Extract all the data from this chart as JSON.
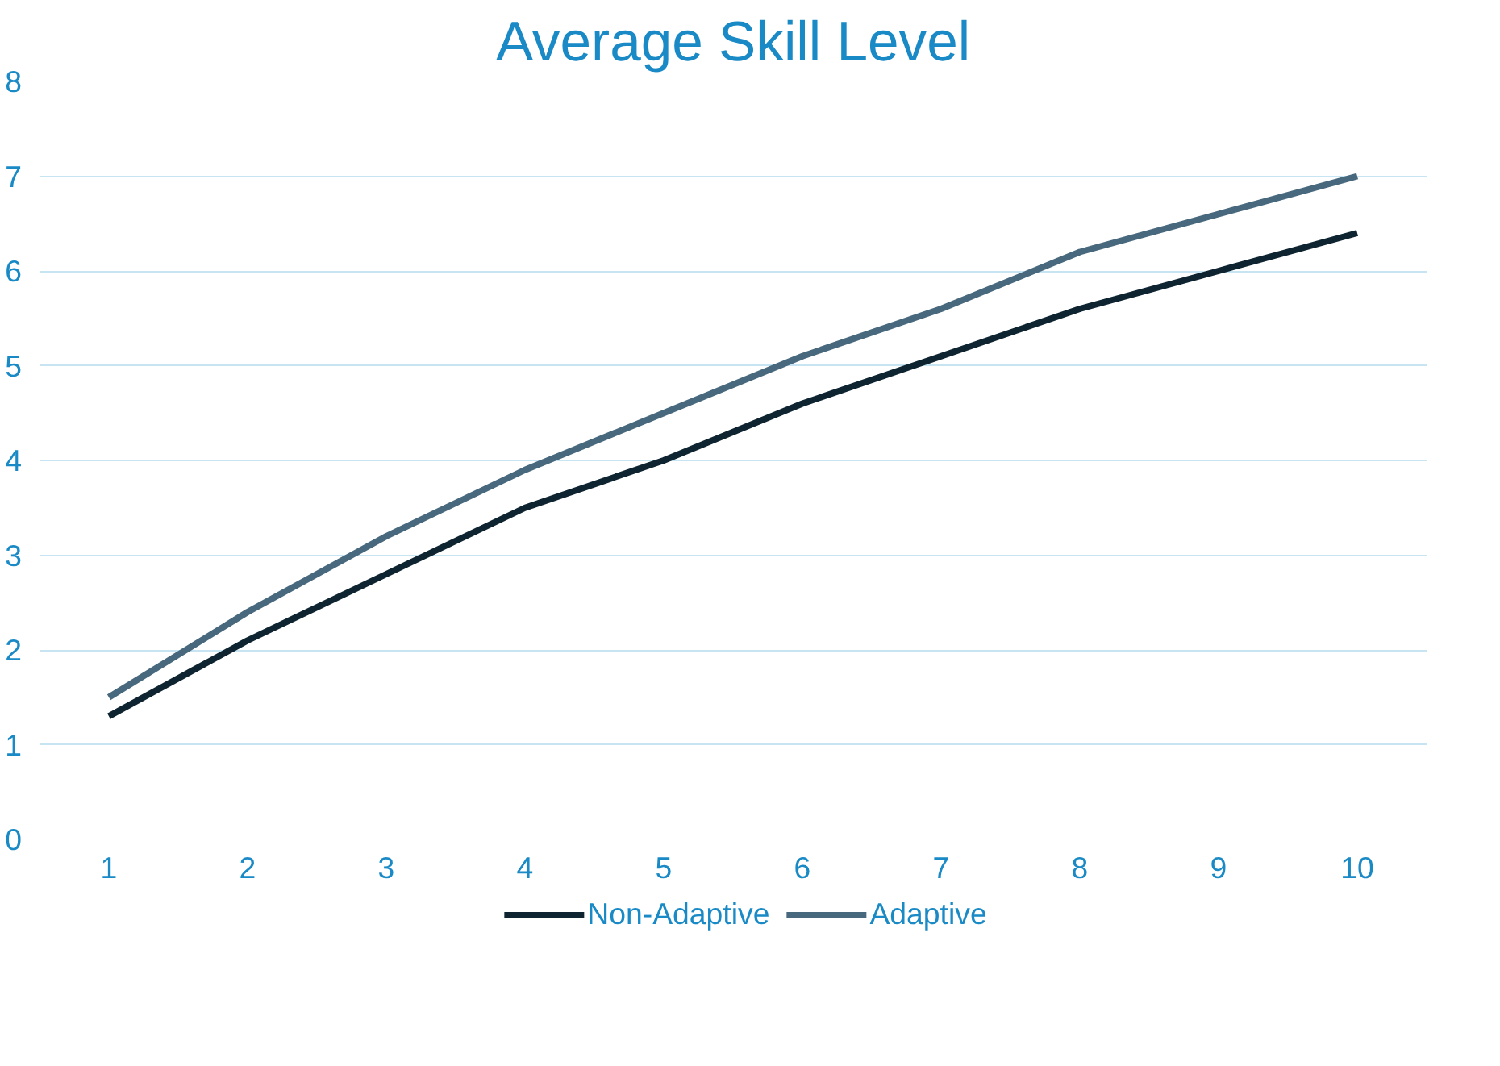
{
  "chart_data": {
    "type": "line",
    "title": "Average Skill Level",
    "categories": [
      "1",
      "2",
      "3",
      "4",
      "5",
      "6",
      "7",
      "8",
      "9",
      "10"
    ],
    "series": [
      {
        "name": "Non-Adaptive",
        "color": "#0e2431",
        "values": [
          1.3,
          2.1,
          2.8,
          3.5,
          4.0,
          4.6,
          5.1,
          5.6,
          6.0,
          6.4
        ]
      },
      {
        "name": "Adaptive",
        "color": "#47687d",
        "values": [
          1.5,
          2.4,
          3.2,
          3.9,
          4.5,
          5.1,
          5.6,
          6.2,
          6.6,
          7.0
        ]
      }
    ],
    "ylim": [
      0,
      8
    ],
    "yticks": [
      0,
      1,
      2,
      3,
      4,
      5,
      6,
      7,
      8
    ],
    "grid": "y",
    "legend": "bottom",
    "marker": "none",
    "line_style": "solid"
  }
}
